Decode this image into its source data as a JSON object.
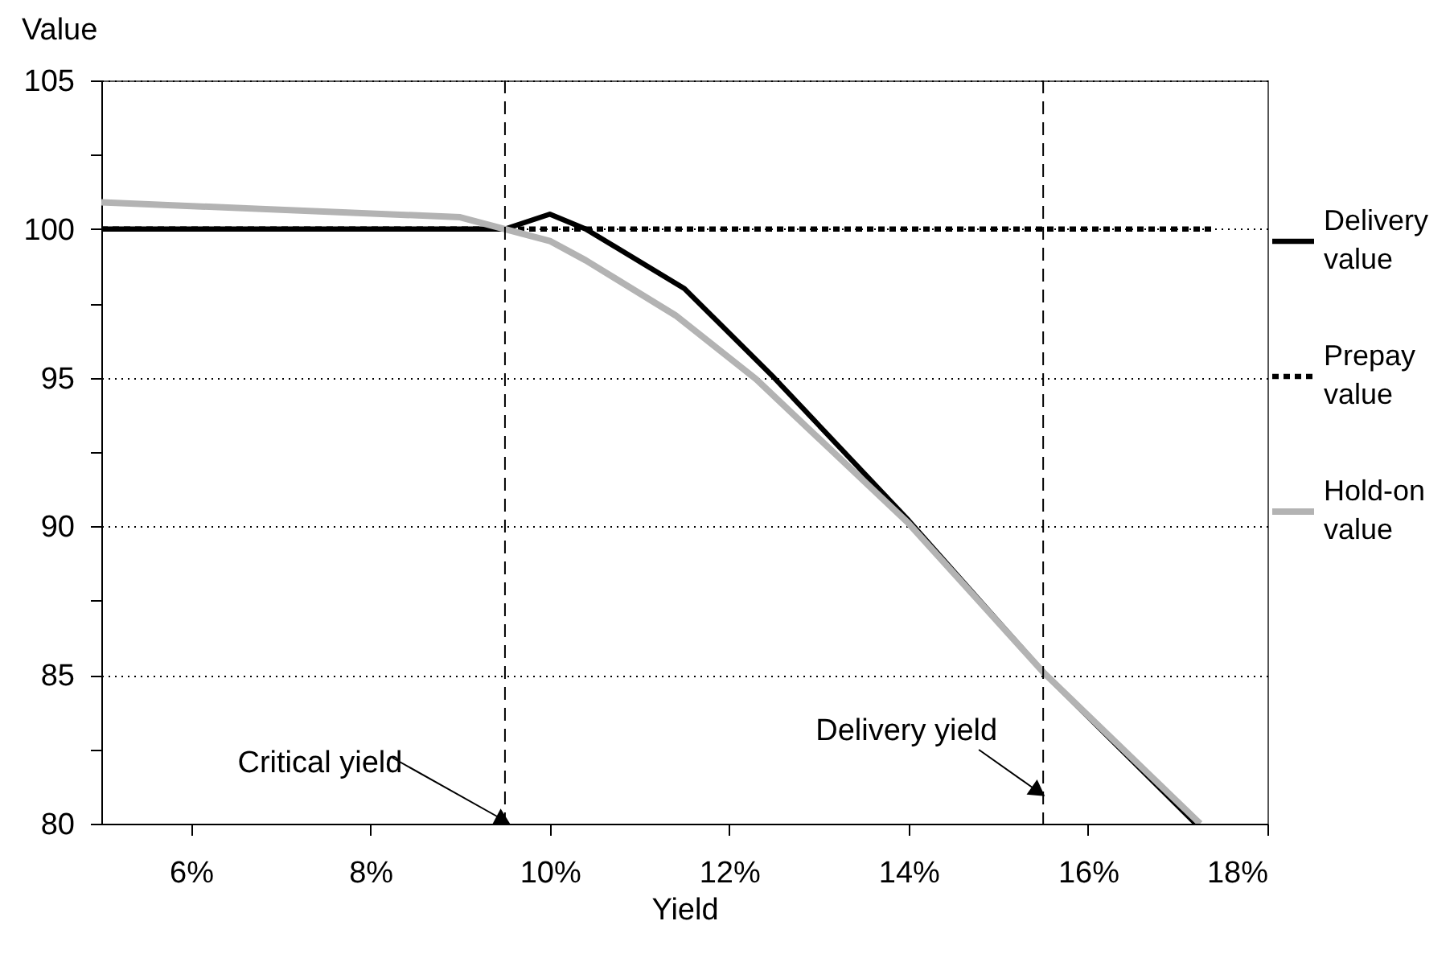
{
  "chart_data": {
    "type": "line",
    "xlabel": "Yield",
    "ylabel": "Value",
    "series": [
      {
        "name": "Delivery value",
        "color": "#000000",
        "line_style": "solid",
        "x": [
          5,
          9.5,
          10.0,
          10.4,
          11.5,
          12.5,
          14.0,
          15.5,
          17.2
        ],
        "values": [
          100,
          100,
          100.5,
          100,
          98,
          95,
          90.2,
          85.1,
          80
        ]
      },
      {
        "name": "Prepay value",
        "color": "#000000",
        "line_style": "dotted",
        "x": [
          5,
          17.4
        ],
        "values": [
          100,
          100
        ]
      },
      {
        "name": "Hold-on value",
        "color": "#b3b3b3",
        "line_style": "solid",
        "x": [
          5,
          9.0,
          9.5,
          10.0,
          10.4,
          11.4,
          12.3,
          14.0,
          15.5,
          17.25
        ],
        "values": [
          100.9,
          100.4,
          100,
          99.6,
          98.95,
          97.1,
          94.95,
          90.1,
          85.1,
          80
        ]
      }
    ],
    "ref_lines": [
      {
        "axis": "x",
        "value": 9.5,
        "label": "Critical yield",
        "line_style": "dashed"
      },
      {
        "axis": "x",
        "value": 15.5,
        "label": "Delivery yield",
        "line_style": "dashed"
      }
    ],
    "xlim": [
      5,
      18
    ],
    "xticks": [
      {
        "value": 6,
        "label": "6%"
      },
      {
        "value": 8,
        "label": "8%"
      },
      {
        "value": 10,
        "label": "10%"
      },
      {
        "value": 12,
        "label": "12%"
      },
      {
        "value": 14,
        "label": "14%"
      },
      {
        "value": 16,
        "label": "16%"
      },
      {
        "value": 18,
        "label": "18%"
      }
    ],
    "ylim": [
      80,
      105
    ],
    "yticks": [
      80,
      {
        "value": 82.5,
        "label": null
      },
      85,
      {
        "value": 87.5,
        "label": null
      },
      90,
      {
        "value": 92.5,
        "label": null
      },
      95,
      {
        "value": 97.5,
        "label": null
      },
      100,
      {
        "value": 102.5,
        "label": null
      },
      105
    ],
    "grid": "y",
    "legend": "right",
    "marker": "none"
  }
}
